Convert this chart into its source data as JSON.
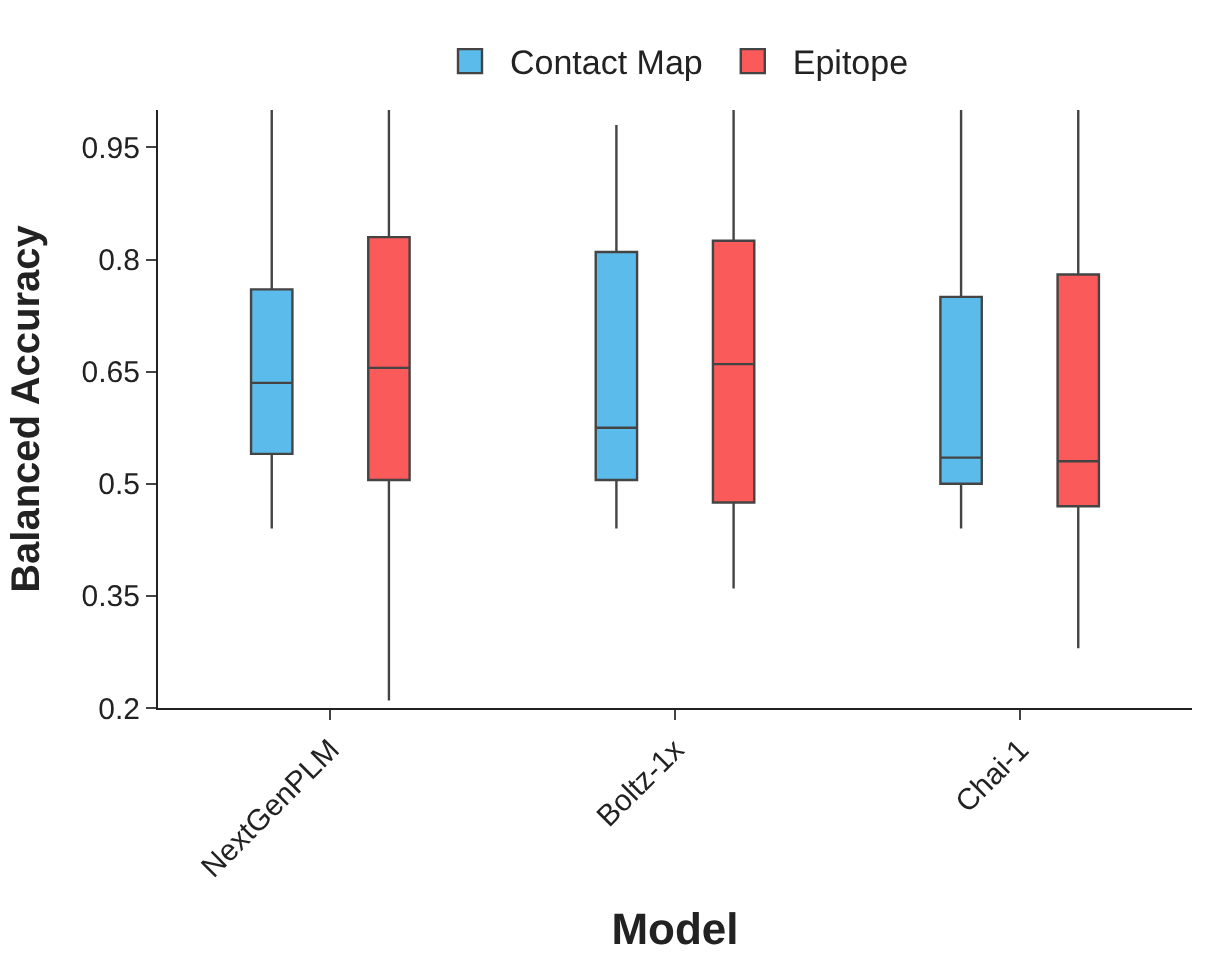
{
  "chart_data": {
    "type": "box",
    "xlabel": "Model",
    "ylabel": "Balanced Accuracy",
    "categories": [
      "NextGenPLM",
      "Boltz-1x",
      "Chai-1"
    ],
    "ylim": [
      0.2,
      1.0
    ],
    "yticks": [
      0.2,
      0.35,
      0.5,
      0.65,
      0.8,
      0.95
    ],
    "legend": "top",
    "series": [
      {
        "name": "Contact Map",
        "color": "#5bbcec",
        "boxes": [
          {
            "low": 0.44,
            "q1": 0.54,
            "median": 0.635,
            "q3": 0.76,
            "high": 1.0
          },
          {
            "low": 0.44,
            "q1": 0.505,
            "median": 0.575,
            "q3": 0.81,
            "high": 0.98
          },
          {
            "low": 0.44,
            "q1": 0.5,
            "median": 0.535,
            "q3": 0.75,
            "high": 1.0
          }
        ]
      },
      {
        "name": "Epitope",
        "color": "#fb5a5a",
        "boxes": [
          {
            "low": 0.21,
            "q1": 0.505,
            "median": 0.655,
            "q3": 0.83,
            "high": 1.0
          },
          {
            "low": 0.36,
            "q1": 0.475,
            "median": 0.66,
            "q3": 0.825,
            "high": 1.0
          },
          {
            "low": 0.28,
            "q1": 0.47,
            "median": 0.53,
            "q3": 0.78,
            "high": 1.0
          }
        ]
      }
    ]
  }
}
